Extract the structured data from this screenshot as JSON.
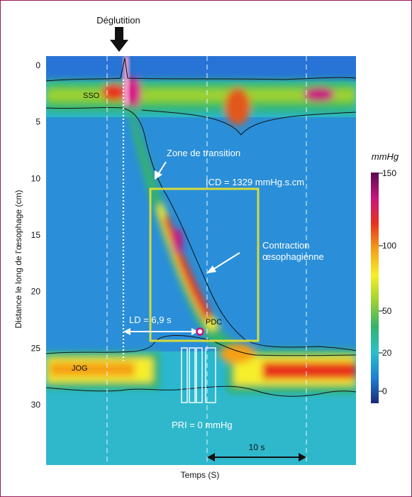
{
  "chart_data": {
    "type": "heatmap",
    "title": "",
    "xlabel": "Temps (S)",
    "ylabel": "Distance le long de l'œsophage (cm)",
    "y_ticks": [
      0,
      5,
      10,
      15,
      20,
      25,
      30
    ],
    "ylim": [
      0,
      30
    ],
    "x_scale_bar": "10 s",
    "colorbar": {
      "label": "mmHg",
      "ticks": [
        0,
        20,
        50,
        100,
        150
      ],
      "range": [
        0,
        150
      ],
      "colors": [
        "#1b2a78",
        "#1f7fd6",
        "#2bc0c8",
        "#35b36a",
        "#9ed232",
        "#f6ee2a",
        "#f5a019",
        "#e8321e",
        "#c8157e",
        "#5a0a4a"
      ]
    },
    "annotations": {
      "swallow": "Déglutition",
      "uss": "SSO",
      "transition_zone": "Zone de transition",
      "dci": "ICD = 1329 mmHg.s.cm",
      "contraction": "Contraction\nœsophagienne",
      "latency": "LD = 6,9 s",
      "cdp": "PDC",
      "lss": "JOG",
      "irp": "PRI = 0 mmHg"
    }
  }
}
